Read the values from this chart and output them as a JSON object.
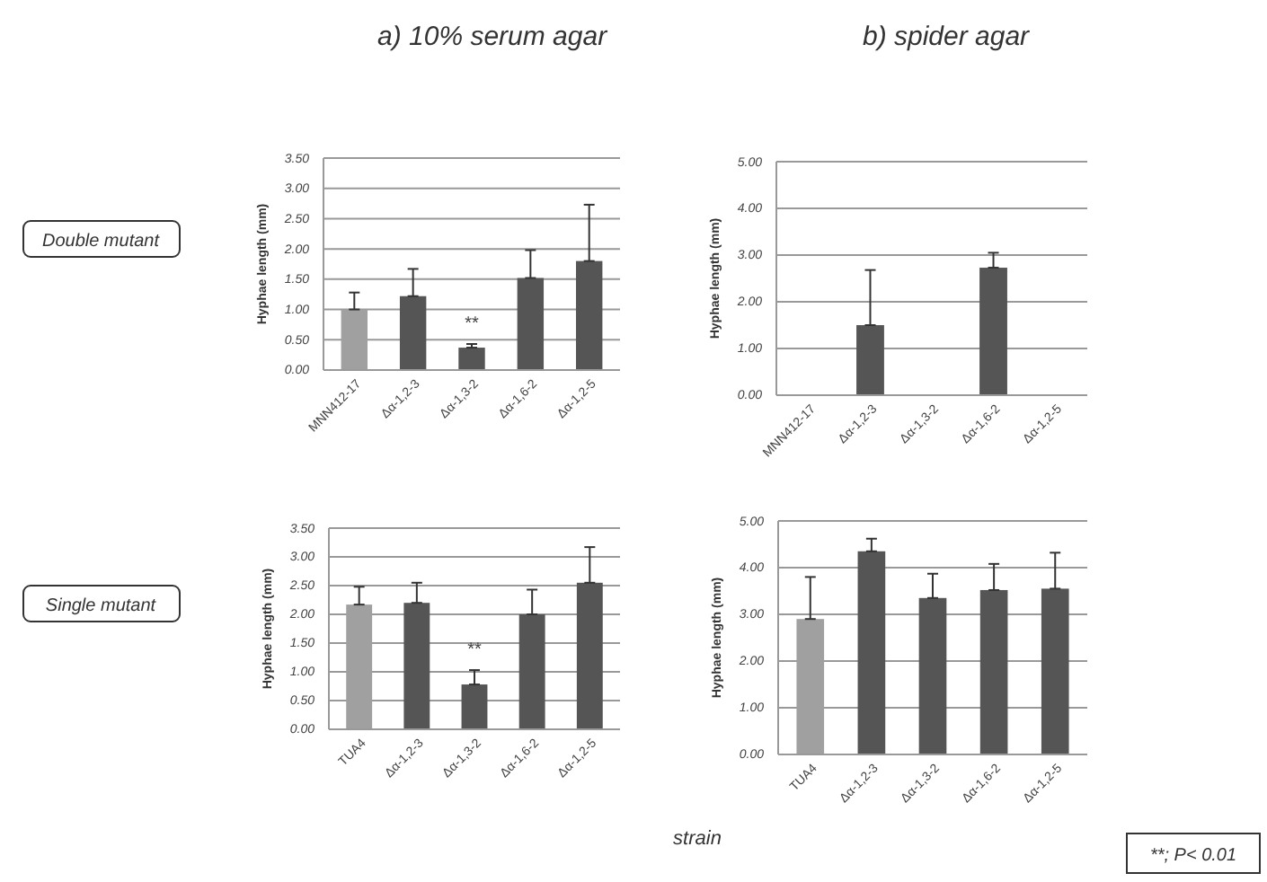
{
  "chart_data": [
    {
      "type": "bar",
      "title": "a) 10% serum agar",
      "ylabel": "Hyphae length (mm)",
      "categories": [
        "MNN412-17",
        "Δα-1,2-3",
        "Δα-1,3-2",
        "Δα-1,6-2",
        "Δα-1,2-5"
      ],
      "values": [
        1.0,
        1.22,
        0.37,
        1.52,
        1.8
      ],
      "colors": [
        "#a0a0a0",
        "#555555",
        "#555555",
        "#555555",
        "#555555"
      ],
      "errors": [
        [
          1.0,
          1.28
        ],
        [
          1.22,
          1.67
        ],
        [
          0.37,
          0.43
        ],
        [
          1.52,
          1.98
        ],
        [
          1.8,
          2.73
        ]
      ],
      "ylim": [
        0,
        3.5
      ],
      "yticks": [
        {
          "value": 0,
          "label": "0.00"
        },
        {
          "value": 0.5,
          "label": "0.50"
        },
        {
          "value": 1,
          "label": "1.00"
        },
        {
          "value": 1.5,
          "label": "1.50"
        },
        {
          "value": 2,
          "label": "2.00"
        },
        {
          "value": 2.5,
          "label": "2.50"
        },
        {
          "value": 3,
          "label": "3.00"
        },
        {
          "value": 3.5,
          "label": "3.50"
        }
      ],
      "grid": "y",
      "annotations": [
        "Double mutant",
        "**"
      ]
    },
    {
      "type": "bar",
      "title": "b) spider agar",
      "ylabel": "Hyphae length (mm)",
      "categories": [
        "MNN412-17",
        "Δα-1,2-3",
        "Δα-1,3-2",
        "Δα-1,6-2",
        "Δα-1,2-5"
      ],
      "values": [
        null,
        1.5,
        null,
        2.73,
        null
      ],
      "color": "#555555",
      "errors": [
        null,
        [
          1.5,
          2.68
        ],
        null,
        [
          2.73,
          3.05
        ],
        null
      ],
      "ylim": [
        0,
        5
      ],
      "yticks": [
        {
          "value": 0,
          "label": "0.00"
        },
        {
          "value": 1,
          "label": "1.00"
        },
        {
          "value": 2,
          "label": "2.00"
        },
        {
          "value": 3,
          "label": "3.00"
        },
        {
          "value": 4,
          "label": "4.00"
        },
        {
          "value": 5,
          "label": "5.00"
        }
      ],
      "grid": "y"
    },
    {
      "type": "bar",
      "xlabel": "strain",
      "ylabel": "Hyphae length (mm)",
      "categories": [
        "TUA4",
        "Δα-1,2-3",
        "Δα-1,3-2",
        "Δα-1,6-2",
        "Δα-1,2-5"
      ],
      "values": [
        2.17,
        2.2,
        0.78,
        2.0,
        2.55
      ],
      "colors": [
        "#a0a0a0",
        "#555555",
        "#555555",
        "#555555",
        "#555555"
      ],
      "errors": [
        [
          2.17,
          2.48
        ],
        [
          2.2,
          2.55
        ],
        [
          0.78,
          1.03
        ],
        [
          2.0,
          2.43
        ],
        [
          2.55,
          3.17
        ]
      ],
      "ylim": [
        0,
        3.5
      ],
      "yticks": [
        {
          "value": 0,
          "label": "0.00"
        },
        {
          "value": 0.5,
          "label": "0.50"
        },
        {
          "value": 1,
          "label": "1.00"
        },
        {
          "value": 1.5,
          "label": "1.50"
        },
        {
          "value": 2,
          "label": "2.00"
        },
        {
          "value": 2.5,
          "label": "2.50"
        },
        {
          "value": 3,
          "label": "3.00"
        },
        {
          "value": 3.5,
          "label": "3.50"
        }
      ],
      "grid": "y",
      "annotations": [
        "Single mutant",
        "**"
      ]
    },
    {
      "type": "bar",
      "ylabel": "Hyphae length (mm)",
      "categories": [
        "TUA4",
        "Δα-1,2-3",
        "Δα-1,3-2",
        "Δα-1,6-2",
        "Δα-1,2-5"
      ],
      "values": [
        2.9,
        4.35,
        3.35,
        3.52,
        3.55
      ],
      "colors": [
        "#a0a0a0",
        "#555555",
        "#555555",
        "#555555",
        "#555555"
      ],
      "errors": [
        [
          2.9,
          3.8
        ],
        [
          4.35,
          4.62
        ],
        [
          3.35,
          3.87
        ],
        [
          3.52,
          4.08
        ],
        [
          3.55,
          4.32
        ]
      ],
      "ylim": [
        0,
        5
      ],
      "yticks": [
        {
          "value": 0,
          "label": "0.00"
        },
        {
          "value": 1,
          "label": "1.00"
        },
        {
          "value": 2,
          "label": "2.00"
        },
        {
          "value": 3,
          "label": "3.00"
        },
        {
          "value": 4,
          "label": "4.00"
        },
        {
          "value": 5,
          "label": "5.00"
        }
      ],
      "grid": "y",
      "annotations": [
        "**; P< 0.01"
      ]
    }
  ]
}
